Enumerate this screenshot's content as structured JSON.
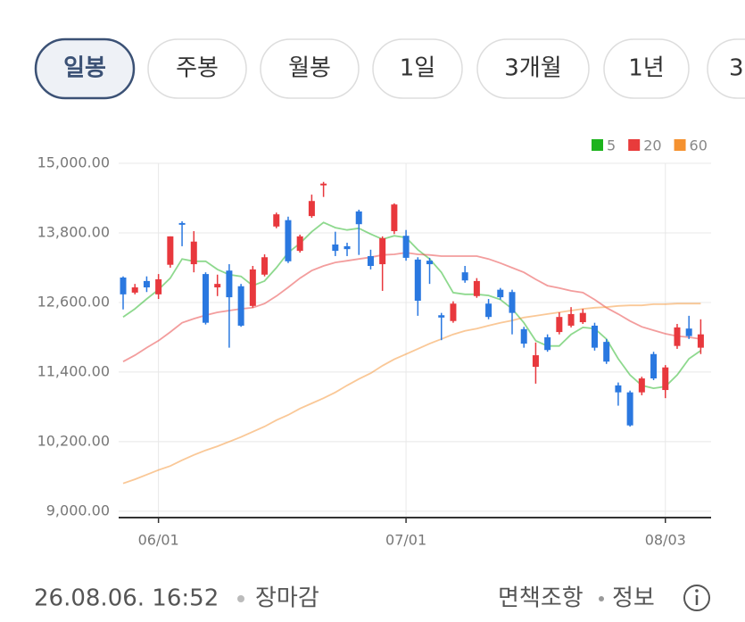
{
  "tabs": [
    "일봉",
    "주봉",
    "월봉",
    "1일",
    "3개월",
    "1년",
    "3"
  ],
  "selected_tab": 0,
  "chart_data": {
    "type": "candlestick",
    "categories": [
      null,
      null,
      null,
      "06/01",
      null,
      null,
      null,
      null,
      null,
      null,
      null,
      null,
      null,
      null,
      null,
      null,
      null,
      null,
      null,
      null,
      null,
      null,
      null,
      null,
      "07/01",
      null,
      null,
      null,
      null,
      null,
      null,
      null,
      null,
      null,
      null,
      null,
      null,
      null,
      null,
      null,
      null,
      null,
      null,
      null,
      null,
      null,
      "08/03",
      null,
      null,
      null
    ],
    "open": [
      13030,
      12770,
      12970,
      12740,
      13250,
      13970,
      13260,
      13090,
      12860,
      13150,
      12880,
      12540,
      13080,
      13910,
      14020,
      13490,
      14090,
      14620,
      13600,
      13570,
      14170,
      13400,
      13260,
      13830,
      13750,
      13340,
      13320,
      12380,
      12280,
      13120,
      12710,
      12580,
      12820,
      12780,
      12140,
      11490,
      12000,
      12090,
      12200,
      12260,
      12200,
      11920,
      11170,
      11050,
      11050,
      11710,
      11090,
      11850,
      12150,
      11820
    ],
    "high": [
      13050,
      12920,
      13050,
      13090,
      13740,
      14000,
      13830,
      13120,
      13080,
      13260,
      12920,
      13230,
      13430,
      14150,
      14080,
      13770,
      14460,
      14680,
      13820,
      13630,
      14200,
      13510,
      13740,
      14310,
      13850,
      13380,
      13370,
      12420,
      12620,
      13230,
      13020,
      12660,
      12850,
      12820,
      12180,
      11910,
      12050,
      12430,
      12520,
      12490,
      12250,
      11970,
      11220,
      11080,
      11320,
      11750,
      11520,
      12230,
      12370,
      12310
    ],
    "low": [
      12480,
      12740,
      12780,
      12660,
      13200,
      13570,
      13120,
      12220,
      12710,
      11820,
      12180,
      12510,
      13050,
      13880,
      13280,
      13460,
      14060,
      14420,
      13400,
      13400,
      13420,
      13170,
      12800,
      13780,
      13320,
      12370,
      12920,
      11950,
      12250,
      12940,
      12680,
      12310,
      12650,
      12050,
      11820,
      11200,
      11750,
      12050,
      12170,
      12230,
      11770,
      11540,
      10820,
      10460,
      11000,
      11260,
      10950,
      11800,
      11970,
      11710
    ],
    "close": [
      12740,
      12860,
      12860,
      13000,
      13740,
      13940,
      13650,
      12250,
      12920,
      12690,
      12200,
      13170,
      13380,
      14120,
      13310,
      13740,
      14350,
      14650,
      13490,
      13520,
      13950,
      13230,
      13710,
      14290,
      13370,
      12630,
      13260,
      12340,
      12580,
      12980,
      12970,
      12350,
      12690,
      12420,
      11890,
      11690,
      11780,
      12350,
      12400,
      12420,
      11820,
      11580,
      11050,
      10480,
      11290,
      11290,
      11480,
      12170,
      12020,
      12050
    ],
    "up_color": "#e8383d",
    "down_color": "#2a78e0",
    "ma": [
      {
        "name": "5",
        "color": "#1db31d",
        "values": [
          12350,
          12490,
          12660,
          12820,
          13020,
          13350,
          13310,
          13310,
          13170,
          13080,
          13050,
          12890,
          12970,
          13200,
          13460,
          13620,
          13820,
          13980,
          13890,
          13850,
          13880,
          13780,
          13690,
          13750,
          13720,
          13510,
          13350,
          13120,
          12770,
          12740,
          12740,
          12720,
          12650,
          12490,
          12250,
          11940,
          11850,
          11850,
          12050,
          12170,
          12150,
          11970,
          11630,
          11350,
          11170,
          11120,
          11150,
          11350,
          11630,
          11770
        ]
      },
      {
        "name": "20",
        "color": "#e83b3b",
        "values": [
          11580,
          11690,
          11820,
          11940,
          12090,
          12250,
          12320,
          12380,
          12430,
          12460,
          12490,
          12510,
          12580,
          12710,
          12860,
          13020,
          13150,
          13230,
          13290,
          13320,
          13350,
          13380,
          13420,
          13430,
          13460,
          13430,
          13420,
          13400,
          13400,
          13400,
          13400,
          13350,
          13280,
          13200,
          13120,
          13000,
          12890,
          12850,
          12800,
          12770,
          12650,
          12510,
          12400,
          12280,
          12180,
          12120,
          12060,
          12020,
          12000,
          11970
        ]
      },
      {
        "name": "60",
        "color": "#f59230",
        "values": [
          9480,
          9550,
          9630,
          9710,
          9780,
          9880,
          9970,
          10050,
          10120,
          10200,
          10280,
          10370,
          10460,
          10570,
          10660,
          10770,
          10860,
          10950,
          11050,
          11170,
          11280,
          11380,
          11510,
          11620,
          11710,
          11800,
          11890,
          11970,
          12050,
          12110,
          12150,
          12200,
          12250,
          12290,
          12340,
          12370,
          12400,
          12430,
          12460,
          12490,
          12510,
          12520,
          12540,
          12550,
          12550,
          12570,
          12570,
          12580,
          12580,
          12580
        ]
      }
    ],
    "ylim": [
      8890,
      15000
    ],
    "yticks": [
      {
        "value": 9000,
        "label": "9,000.00"
      },
      {
        "value": 10200,
        "label": "10,200.00"
      },
      {
        "value": 11400,
        "label": "11,400.00"
      },
      {
        "value": 12600,
        "label": "12,600.00"
      },
      {
        "value": 13800,
        "label": "13,800.00"
      },
      {
        "value": 15000,
        "label": "15,000.00"
      }
    ],
    "grid": true
  },
  "footer": {
    "timestamp": "26.08.06. 16:52",
    "status": "장마감",
    "disclaimer": "면책조항",
    "info": "정보"
  }
}
